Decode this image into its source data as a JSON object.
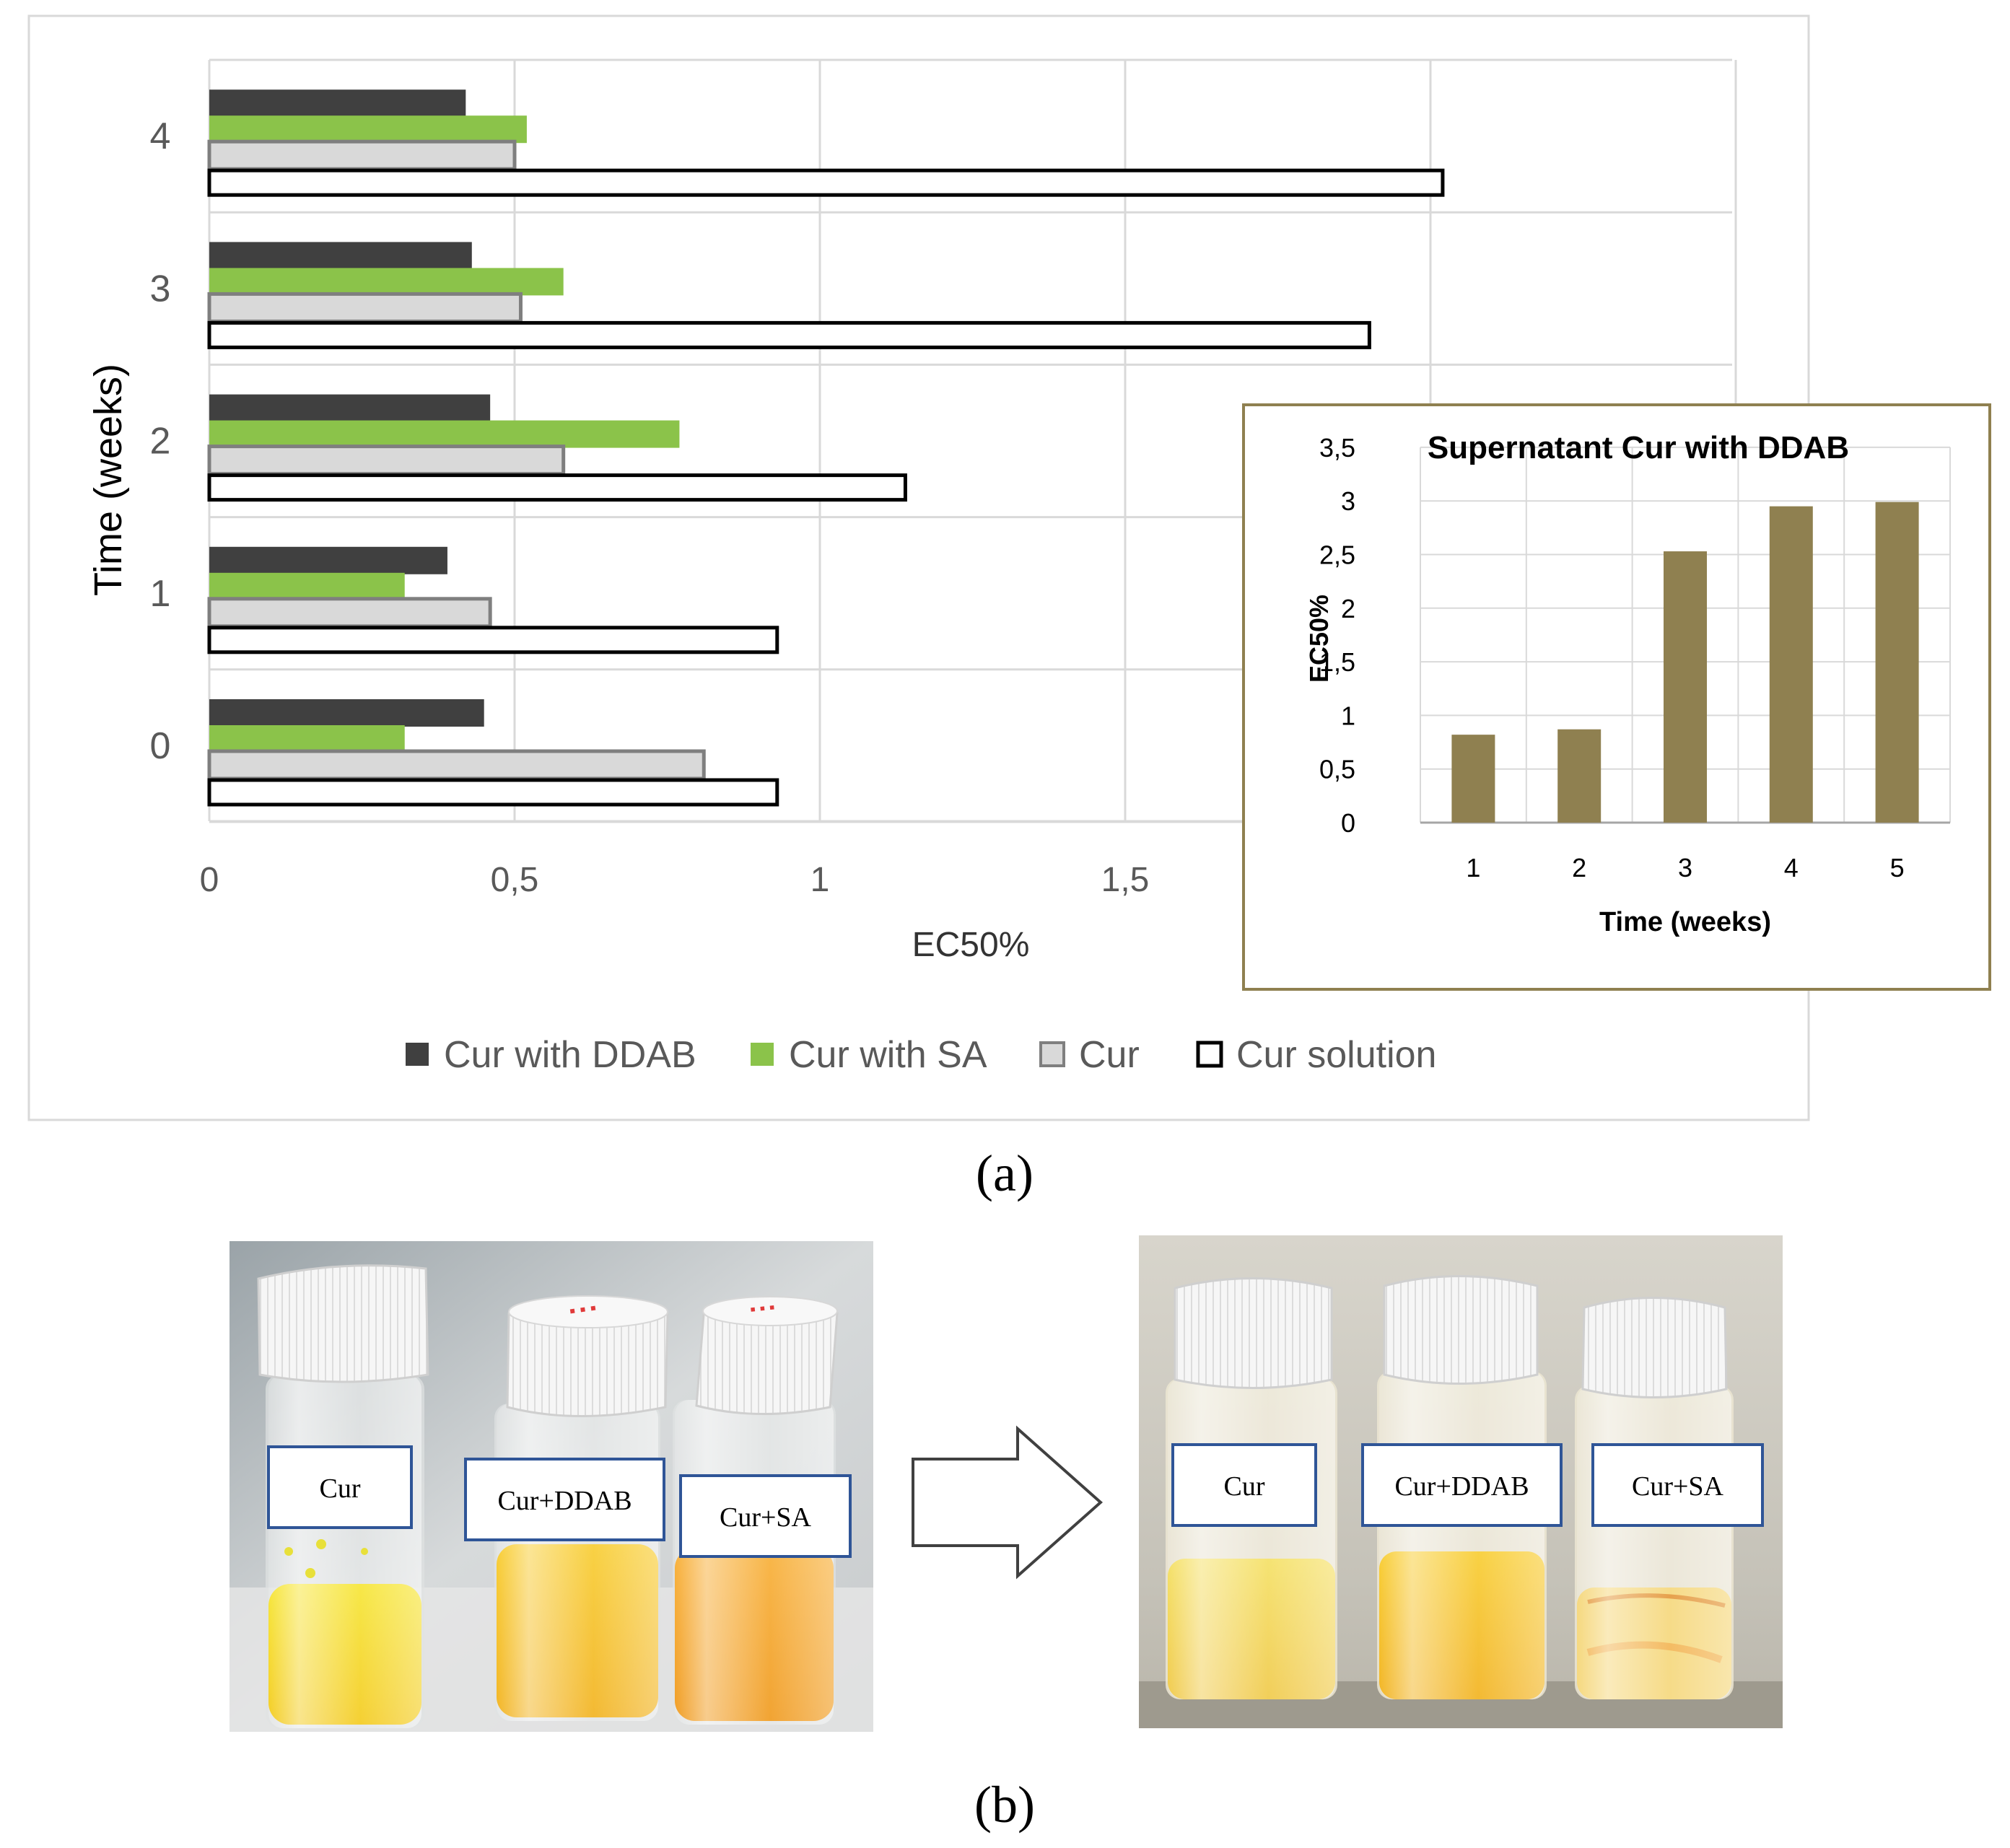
{
  "main_chart": {
    "ylabel": "Time (weeks)",
    "xlabel": "EC50%"
  },
  "chart_data": [
    {
      "type": "bar",
      "orientation": "horizontal",
      "title": "",
      "xlabel": "EC50%",
      "ylabel": "Time (weeks)",
      "categories": [
        "0",
        "1",
        "2",
        "3",
        "4"
      ],
      "xlim": [
        0,
        2.5
      ],
      "x_ticks": [
        "0",
        "0,5",
        "1",
        "1,5"
      ],
      "grid": true,
      "legend_position": "bottom",
      "series": [
        {
          "name": "Cur with DDAB",
          "color": "#404040",
          "values": [
            0.45,
            0.39,
            0.46,
            0.43,
            0.42
          ]
        },
        {
          "name": "Cur with SA",
          "color": "#8bc34a",
          "values": [
            0.32,
            0.32,
            0.77,
            0.58,
            0.52
          ]
        },
        {
          "name": "Cur",
          "color": "#d9d9d9",
          "values": [
            0.81,
            0.46,
            0.58,
            0.51,
            0.5
          ]
        },
        {
          "name": "Cur solution",
          "color": "#ffffff",
          "values": [
            0.93,
            0.93,
            1.14,
            1.9,
            2.02
          ]
        }
      ]
    },
    {
      "type": "bar",
      "title": "Supernatant Cur with DDAB",
      "xlabel": "Time (weeks)",
      "ylabel": "EC50%",
      "categories": [
        "1",
        "2",
        "3",
        "4",
        "5"
      ],
      "values": [
        0.82,
        0.87,
        2.53,
        2.95,
        2.99
      ],
      "ylim": [
        0,
        3.5
      ],
      "y_ticks": [
        "0",
        "0,5",
        "1",
        "1,5",
        "2",
        "2,5",
        "3",
        "3,5"
      ],
      "grid": true,
      "color": "#8f8050",
      "legend_position": "none"
    }
  ],
  "captions": {
    "a": "(a)",
    "b": "(b)"
  },
  "photos": {
    "left_labels": [
      "Cur",
      "Cur+DDAB",
      "Cur+SA"
    ],
    "right_labels": [
      "Cur",
      "Cur+DDAB",
      "Cur+SA"
    ]
  }
}
